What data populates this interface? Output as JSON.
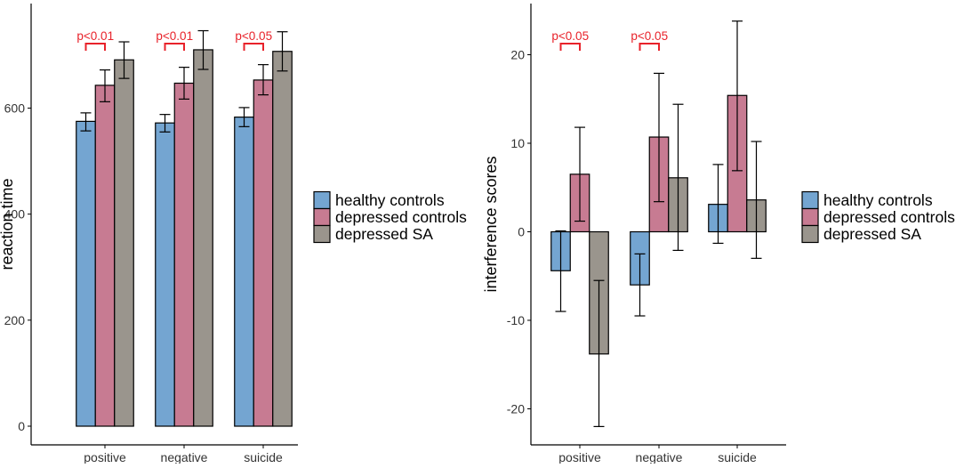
{
  "colors": {
    "healthy": "#74a5d1",
    "depressed_controls": "#c77b92",
    "depressed_sa": "#9a958d",
    "significance": "#e8222a",
    "axis": "#000000"
  },
  "chart_data": [
    {
      "type": "bar",
      "categories": [
        "positive",
        "negative",
        "suicide"
      ],
      "ylabel": "reaction time",
      "xlabel": "",
      "ylim": [
        0,
        780
      ],
      "yticks": [
        0,
        200,
        400,
        600
      ],
      "legend": [
        "healthy controls",
        "depressed controls",
        "depressed SA"
      ],
      "legend_position": "right",
      "series": [
        {
          "name": "healthy controls",
          "values": [
            575,
            572,
            583
          ],
          "err_low": [
            557,
            555,
            565
          ],
          "err_high": [
            591,
            588,
            601
          ]
        },
        {
          "name": "depressed controls",
          "values": [
            643,
            647,
            653
          ],
          "err_low": [
            612,
            617,
            625
          ],
          "err_high": [
            672,
            677,
            682
          ]
        },
        {
          "name": "depressed SA",
          "values": [
            691,
            710,
            707
          ],
          "err_low": [
            656,
            673,
            670
          ],
          "err_high": [
            725,
            746,
            744
          ]
        }
      ],
      "annotations": [
        {
          "label": "p<0.01",
          "category": "positive",
          "from": 0,
          "to": 1
        },
        {
          "label": "p<0.01",
          "category": "negative",
          "from": 0,
          "to": 1
        },
        {
          "label": "p<0.05",
          "category": "suicide",
          "from": 0,
          "to": 1
        }
      ]
    },
    {
      "type": "bar",
      "categories": [
        "positive",
        "negative",
        "suicide"
      ],
      "ylabel": "interference scores",
      "xlabel": "",
      "ylim": [
        -24,
        26
      ],
      "yticks": [
        -20,
        -10,
        0,
        10,
        20
      ],
      "legend": [
        "healthy controls",
        "depressed controls",
        "depressed SA"
      ],
      "legend_position": "right",
      "series": [
        {
          "name": "healthy controls",
          "values": [
            -4.4,
            -6,
            3.1
          ],
          "err_low": [
            -9,
            -9.5,
            -1.3
          ],
          "err_high": [
            0.1,
            -2.5,
            7.6
          ]
        },
        {
          "name": "depressed controls",
          "values": [
            6.5,
            10.7,
            15.4
          ],
          "err_low": [
            1.2,
            3.4,
            6.9
          ],
          "err_high": [
            11.8,
            17.9,
            23.8
          ]
        },
        {
          "name": "depressed SA",
          "values": [
            -13.8,
            6.1,
            3.6
          ],
          "err_low": [
            -22,
            -2.1,
            -3
          ],
          "err_high": [
            -5.5,
            14.4,
            10.2
          ]
        }
      ],
      "annotations": [
        {
          "label": "p<0.05",
          "category": "positive",
          "from": 0,
          "to": 1
        },
        {
          "label": "p<0.05",
          "category": "negative",
          "from": 0,
          "to": 1
        }
      ]
    }
  ]
}
